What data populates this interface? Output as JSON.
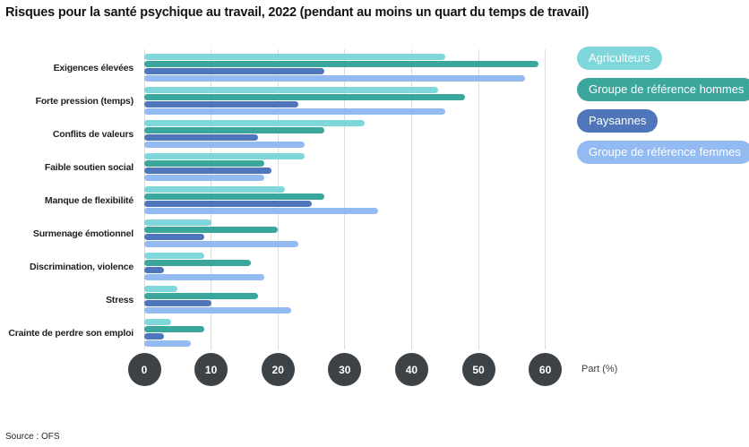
{
  "title": "Risques pour la santé psychique au travail, 2022 (pendant au moins un quart du temps de travail)",
  "source": "Source : OFS",
  "colors": {
    "agriculteurs": "#7FD6DB",
    "hommes": "#3BA69C",
    "paysannes": "#4F76BA",
    "femmes": "#94BAF2",
    "axis_circle": "#3D4247",
    "gridline": "#DCDCDC"
  },
  "chart_data": {
    "type": "bar",
    "orientation": "horizontal",
    "title": "Risques pour la santé psychique au travail, 2022 (pendant au moins un quart du temps de travail)",
    "xlabel": "Part (%)",
    "x_ticks": [
      0,
      10,
      20,
      30,
      40,
      50,
      60
    ],
    "xlim": [
      0,
      63
    ],
    "grid": true,
    "legend_position": "top-right",
    "categories": [
      "Exigences élevées",
      "Forte pression (temps)",
      "Conflits de valeurs",
      "Faible soutien social",
      "Manque de flexibilité",
      "Surmenage émotionnel",
      "Discrimination, violence",
      "Stress",
      "Crainte de perdre son emploi"
    ],
    "series": [
      {
        "name": "Agriculteurs",
        "color_key": "agriculteurs",
        "values": [
          45,
          44,
          33,
          24,
          21,
          10,
          9,
          5,
          4
        ]
      },
      {
        "name": "Groupe de référence hommes",
        "color_key": "hommes",
        "values": [
          59,
          48,
          27,
          18,
          27,
          20,
          16,
          17,
          9
        ]
      },
      {
        "name": "Paysannes",
        "color_key": "paysannes",
        "values": [
          27,
          23,
          17,
          19,
          25,
          9,
          3,
          10,
          3
        ]
      },
      {
        "name": "Groupe de référence femmes",
        "color_key": "femmes",
        "values": [
          57,
          45,
          24,
          18,
          35,
          23,
          18,
          22,
          7
        ]
      }
    ]
  }
}
